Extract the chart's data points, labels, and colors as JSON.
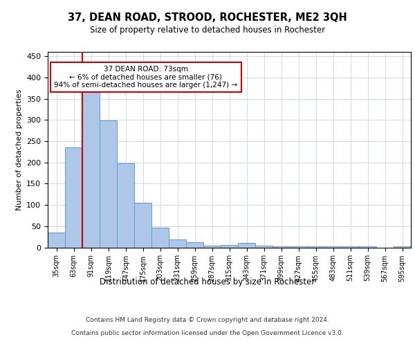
{
  "title": "37, DEAN ROAD, STROOD, ROCHESTER, ME2 3QH",
  "subtitle": "Size of property relative to detached houses in Rochester",
  "xlabel": "Distribution of detached houses by size in Rochester",
  "ylabel": "Number of detached properties",
  "categories": [
    "35sqm",
    "63sqm",
    "91sqm",
    "119sqm",
    "147sqm",
    "175sqm",
    "203sqm",
    "231sqm",
    "259sqm",
    "287sqm",
    "315sqm",
    "343sqm",
    "371sqm",
    "399sqm",
    "427sqm",
    "455sqm",
    "483sqm",
    "511sqm",
    "539sqm",
    "567sqm",
    "595sqm"
  ],
  "values": [
    35,
    235,
    370,
    298,
    198,
    105,
    46,
    19,
    12,
    4,
    5,
    10,
    4,
    2,
    2,
    2,
    2,
    2,
    2,
    0,
    3
  ],
  "bar_color": "#aec6e8",
  "bar_edge_color": "#5b9bd5",
  "ylim": [
    0,
    460
  ],
  "yticks": [
    0,
    50,
    100,
    150,
    200,
    250,
    300,
    350,
    400,
    450
  ],
  "property_line_color": "#cc0000",
  "annotation_text": "37 DEAN ROAD: 73sqm\n← 6% of detached houses are smaller (76)\n94% of semi-detached houses are larger (1,247) →",
  "annotation_box_color": "#ffffff",
  "annotation_box_edge": "#cc0000",
  "footer_line1": "Contains HM Land Registry data © Crown copyright and database right 2024.",
  "footer_line2": "Contains public sector information licensed under the Open Government Licence v3.0.",
  "background_color": "#ffffff",
  "grid_color": "#d0d8e8"
}
